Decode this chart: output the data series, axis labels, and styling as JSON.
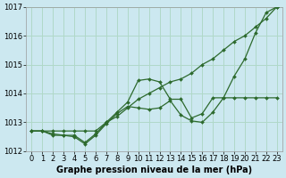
{
  "title": "Graphe pression niveau de la mer (hPa)",
  "bg_color": "#cce8f0",
  "line_color": "#2d6a2d",
  "grid_color": "#b0d8c8",
  "x_min": 0,
  "x_max": 23,
  "y_min": 1012,
  "y_max": 1017,
  "series": [
    {
      "x": [
        0,
        1,
        2,
        3,
        4,
        5,
        6,
        7,
        8,
        9,
        10,
        11,
        12,
        13,
        14,
        15,
        16,
        17,
        18,
        19,
        20,
        21,
        22,
        23
      ],
      "y": [
        1012.7,
        1012.7,
        1012.7,
        1012.7,
        1012.7,
        1012.7,
        1012.7,
        1013.0,
        1013.2,
        1013.5,
        1013.8,
        1014.0,
        1014.2,
        1014.4,
        1014.5,
        1014.7,
        1015.0,
        1015.2,
        1015.5,
        1015.8,
        1016.0,
        1016.3,
        1016.6,
        1017.0
      ]
    },
    {
      "x": [
        0,
        1,
        2,
        3,
        4,
        5,
        6,
        7,
        8,
        9,
        10,
        11,
        12,
        13,
        14,
        15,
        16,
        17,
        18,
        19,
        20,
        21,
        22,
        23
      ],
      "y": [
        1012.7,
        1012.7,
        1012.6,
        1012.55,
        1012.55,
        1012.3,
        1012.6,
        1013.0,
        1013.35,
        1013.7,
        1014.45,
        1014.5,
        1014.4,
        1013.8,
        1013.8,
        1013.15,
        1013.3,
        1013.85,
        1013.85,
        1014.6,
        1015.2,
        1016.1,
        1016.8,
        1017.0
      ]
    },
    {
      "x": [
        0,
        1,
        2,
        3,
        4,
        5,
        6,
        7,
        8,
        9,
        10,
        11,
        12,
        13,
        14,
        15,
        16,
        17,
        18,
        19,
        20,
        21,
        22,
        23
      ],
      "y": [
        1012.7,
        1012.7,
        1012.55,
        1012.55,
        1012.5,
        1012.25,
        1012.55,
        1012.95,
        1013.3,
        1013.55,
        1013.5,
        1013.45,
        1013.5,
        1013.75,
        1013.25,
        1013.05,
        1013.0,
        1013.35,
        1013.85,
        1013.85,
        1013.85,
        1013.85,
        1013.85,
        1013.85
      ]
    }
  ],
  "xticks": [
    0,
    1,
    2,
    3,
    4,
    5,
    6,
    7,
    8,
    9,
    10,
    11,
    12,
    13,
    14,
    15,
    16,
    17,
    18,
    19,
    20,
    21,
    22,
    23
  ],
  "yticks": [
    1012,
    1013,
    1014,
    1015,
    1016,
    1017
  ],
  "tick_fontsize": 6.0,
  "title_fontsize": 7.0
}
